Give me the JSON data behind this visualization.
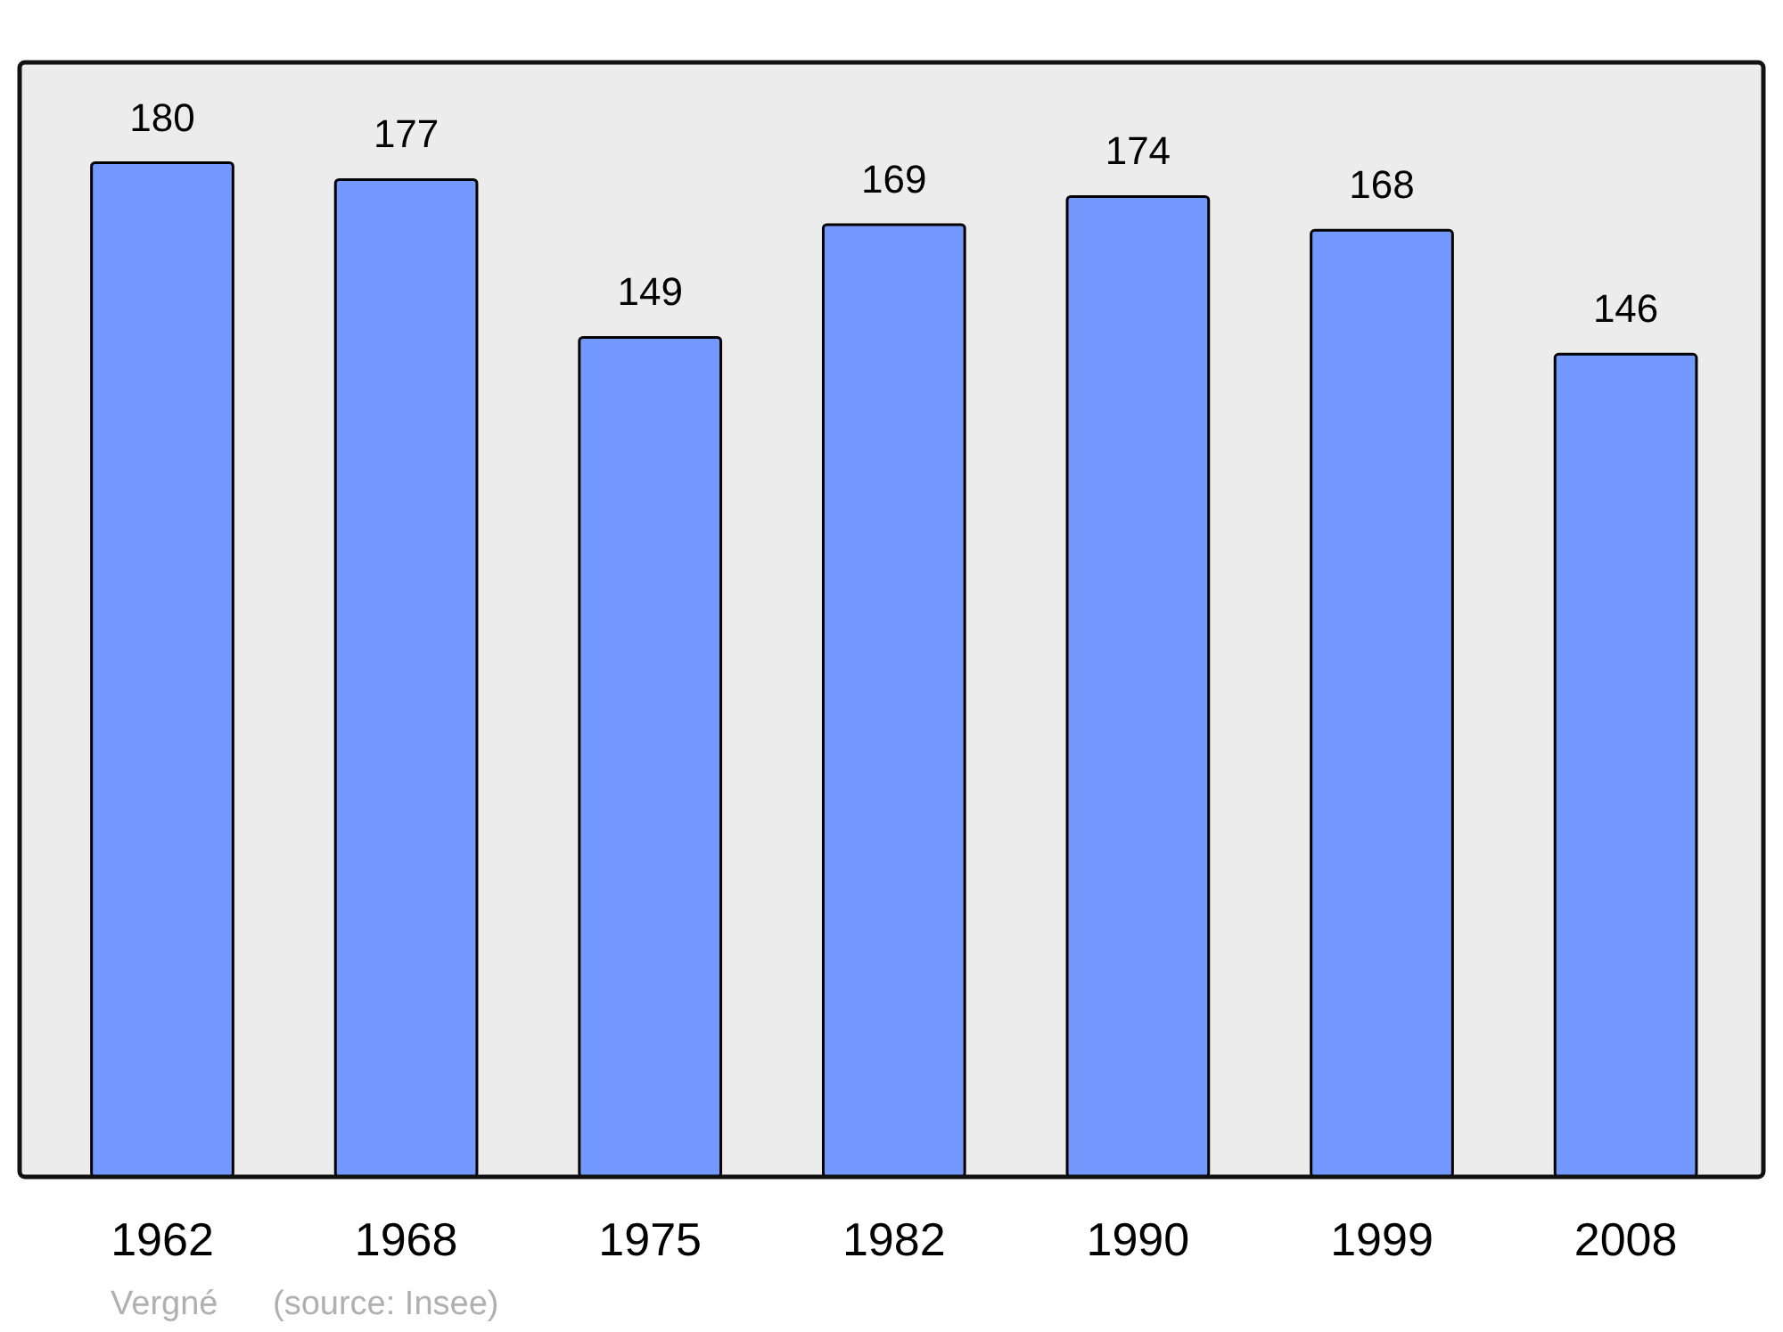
{
  "chart_data": {
    "type": "bar",
    "categories": [
      "1962",
      "1968",
      "1975",
      "1982",
      "1990",
      "1999",
      "2008"
    ],
    "values": [
      180,
      177,
      149,
      169,
      174,
      168,
      146
    ],
    "color": "#7399ff",
    "data_labels": true,
    "annotations": [
      "Vergné",
      "(source: Insee)"
    ]
  }
}
